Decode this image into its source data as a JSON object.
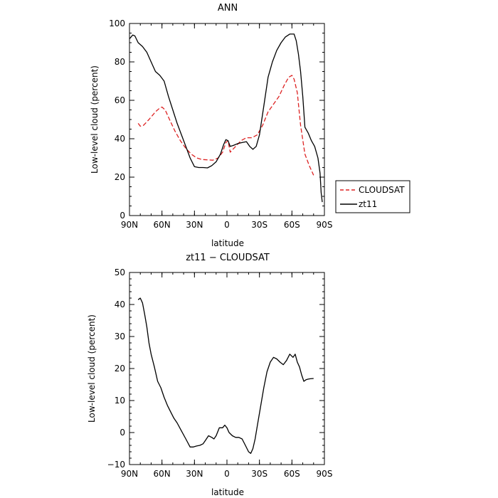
{
  "chart_data": [
    {
      "type": "line",
      "title": "ANN",
      "xlabel": "latitude",
      "ylabel": "Low-level cloud (percent)",
      "xlim": [
        90,
        -90
      ],
      "ylim": [
        0,
        100
      ],
      "xticks": [
        90,
        60,
        30,
        0,
        -30,
        -60,
        -90
      ],
      "xtick_labels": [
        "90N",
        "60N",
        "30N",
        "0",
        "30S",
        "60S",
        "90S"
      ],
      "yticks": [
        0,
        20,
        40,
        60,
        80,
        100
      ],
      "ytick_labels": [
        "0",
        "20",
        "40",
        "60",
        "80",
        "100"
      ],
      "legend_position": "right",
      "series": [
        {
          "name": "CLOUDSAT",
          "color": "#dd2222",
          "dash": "dashed",
          "x": [
            82,
            80,
            77,
            72,
            66,
            62,
            60,
            57,
            53,
            48,
            43,
            38,
            33,
            28,
            23,
            18,
            13,
            8,
            4,
            1,
            -1,
            -3,
            -8,
            -13,
            -18,
            -23,
            -28,
            -33,
            -38,
            -43,
            -48,
            -53,
            -57,
            -60,
            -62,
            -65,
            -68,
            -72,
            -76,
            -80
          ],
          "y": [
            48,
            46.5,
            47,
            50,
            54,
            56,
            56.5,
            55,
            50,
            44,
            39,
            35,
            32,
            30,
            29.2,
            29,
            28.8,
            30,
            33,
            38,
            39,
            33,
            36,
            39,
            40.5,
            40.5,
            42,
            47,
            54,
            58,
            62,
            68,
            72,
            73,
            71,
            64,
            47,
            32,
            26,
            21
          ]
        },
        {
          "name": "zt11",
          "color": "#000000",
          "dash": "solid",
          "x": [
            90,
            87,
            85,
            82,
            78,
            74,
            70,
            66,
            62,
            58,
            54,
            50,
            46,
            42,
            38,
            34,
            30,
            26,
            22,
            18,
            14,
            10,
            6,
            3,
            1,
            -1,
            -3,
            -6,
            -10,
            -14,
            -18,
            -21,
            -24,
            -27,
            -30,
            -34,
            -38,
            -42,
            -46,
            -50,
            -54,
            -58,
            -62,
            -64,
            -66,
            -68,
            -70,
            -72,
            -75,
            -78,
            -81,
            -84,
            -86,
            -87,
            -88
          ],
          "y": [
            92,
            94,
            93.5,
            90,
            88,
            85,
            80,
            75,
            73,
            70,
            62,
            55,
            48,
            42,
            36,
            30,
            25.5,
            25,
            25,
            24.8,
            26,
            28,
            32,
            37,
            39.5,
            39,
            36,
            36.5,
            37.5,
            38,
            38.5,
            36,
            34.5,
            36,
            42,
            57,
            72,
            80,
            86,
            90,
            93,
            94.5,
            94.5,
            91,
            84,
            75,
            62,
            46,
            43,
            39,
            36,
            30,
            22,
            12,
            7
          ]
        }
      ]
    },
    {
      "type": "line",
      "title": "zt11 − CLOUDSAT",
      "xlabel": "latitude",
      "ylabel": "Low-level cloud (percent)",
      "xlim": [
        90,
        -90
      ],
      "ylim": [
        -10,
        50
      ],
      "xticks": [
        90,
        60,
        30,
        0,
        -30,
        -60,
        -90
      ],
      "xtick_labels": [
        "90N",
        "60N",
        "30N",
        "0",
        "30S",
        "60S",
        "90S"
      ],
      "yticks": [
        -10,
        0,
        10,
        20,
        30,
        40,
        50
      ],
      "ytick_labels": [
        "−10",
        "0",
        "10",
        "20",
        "30",
        "40",
        "50"
      ],
      "series": [
        {
          "color": "#000000",
          "dash": "solid",
          "x": [
            82,
            80,
            78,
            76,
            74,
            72,
            70,
            67,
            64,
            61,
            58,
            55,
            52,
            49,
            46,
            42,
            38,
            34,
            31,
            28,
            25,
            22,
            20,
            17,
            14,
            12,
            10,
            7,
            4,
            2,
            0,
            -2,
            -5,
            -8,
            -11,
            -14,
            -17,
            -20,
            -22,
            -24,
            -26,
            -28,
            -31,
            -34,
            -37,
            -40,
            -43,
            -46,
            -49,
            -52,
            -55,
            -58,
            -61,
            -63,
            -65,
            -67,
            -69,
            -71,
            -73,
            -75,
            -77,
            -80
          ],
          "y": [
            41.5,
            42,
            40.5,
            37,
            33,
            28,
            24.5,
            20.5,
            16,
            14,
            11,
            8.5,
            6.5,
            4.5,
            3,
            0.5,
            -2,
            -4.5,
            -4.5,
            -4.2,
            -4,
            -3.5,
            -2.5,
            -1,
            -1.5,
            -2,
            -1,
            1.5,
            1.5,
            2.3,
            1.5,
            0,
            -1,
            -1.5,
            -1.5,
            -2,
            -4,
            -6,
            -6.5,
            -5,
            -2,
            2,
            8,
            14,
            19,
            22,
            23.5,
            23,
            22,
            21.2,
            22.5,
            24.5,
            23.5,
            24.5,
            22,
            20.5,
            18,
            16,
            16.5,
            16.7,
            16.8,
            16.9
          ]
        }
      ]
    }
  ]
}
